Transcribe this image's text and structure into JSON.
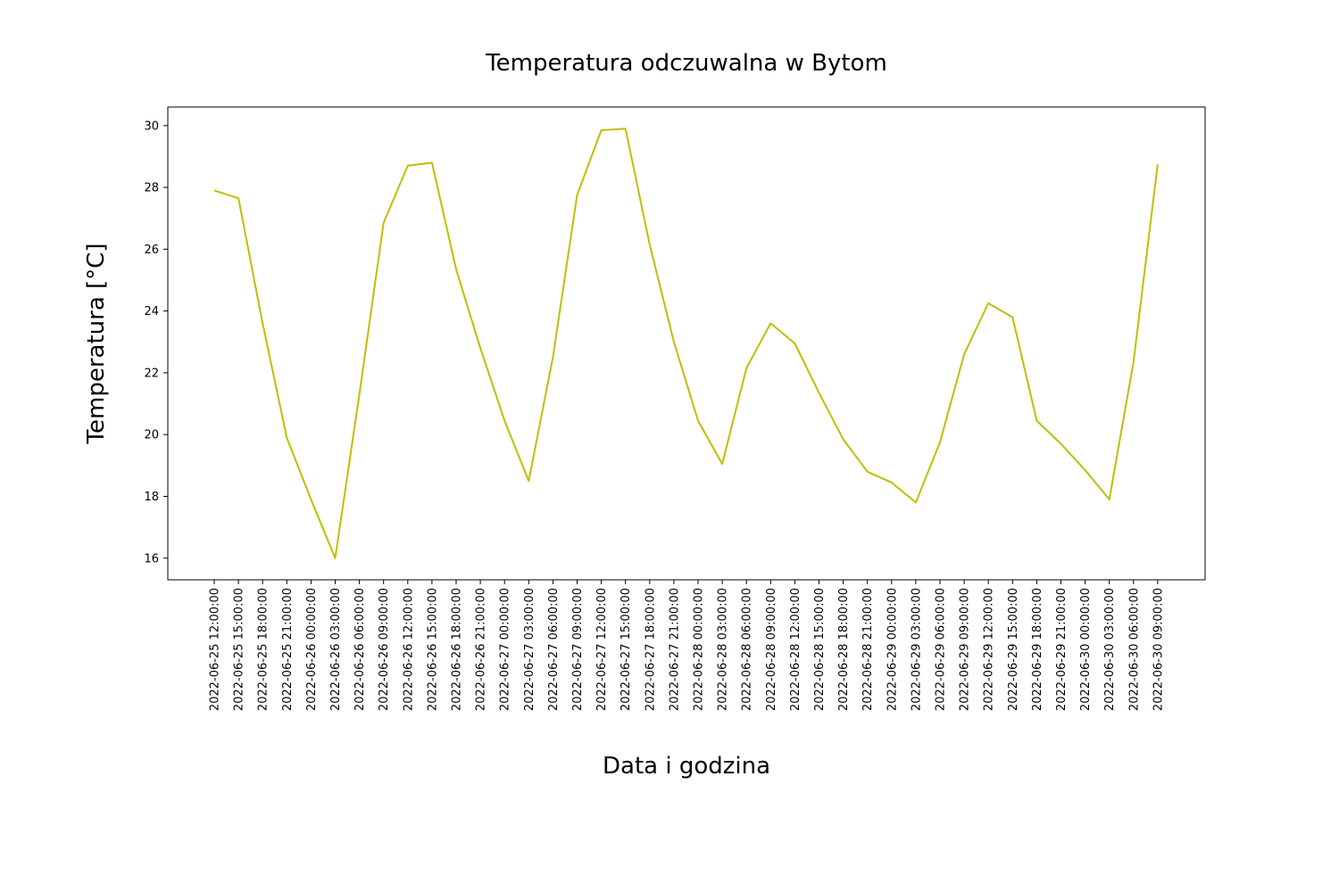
{
  "chart_data": {
    "type": "line",
    "title": "Temperatura odczuwalna w Bytom",
    "xlabel": "Data i godzina",
    "ylabel": "Temperatura [°C]",
    "ylim": [
      15.3,
      30.6
    ],
    "yticks": [
      16,
      18,
      20,
      22,
      24,
      26,
      28,
      30
    ],
    "grid": false,
    "line_color": "#bfbf00",
    "x": [
      "2022-06-25 12:00:00",
      "2022-06-25 15:00:00",
      "2022-06-25 18:00:00",
      "2022-06-25 21:00:00",
      "2022-06-26 00:00:00",
      "2022-06-26 03:00:00",
      "2022-06-26 06:00:00",
      "2022-06-26 09:00:00",
      "2022-06-26 12:00:00",
      "2022-06-26 15:00:00",
      "2022-06-26 18:00:00",
      "2022-06-26 21:00:00",
      "2022-06-27 00:00:00",
      "2022-06-27 03:00:00",
      "2022-06-27 06:00:00",
      "2022-06-27 09:00:00",
      "2022-06-27 12:00:00",
      "2022-06-27 15:00:00",
      "2022-06-27 18:00:00",
      "2022-06-27 21:00:00",
      "2022-06-28 00:00:00",
      "2022-06-28 03:00:00",
      "2022-06-28 06:00:00",
      "2022-06-28 09:00:00",
      "2022-06-28 12:00:00",
      "2022-06-28 15:00:00",
      "2022-06-28 18:00:00",
      "2022-06-28 21:00:00",
      "2022-06-29 00:00:00",
      "2022-06-29 03:00:00",
      "2022-06-29 06:00:00",
      "2022-06-29 09:00:00",
      "2022-06-29 12:00:00",
      "2022-06-29 15:00:00",
      "2022-06-29 18:00:00",
      "2022-06-29 21:00:00",
      "2022-06-30 00:00:00",
      "2022-06-30 03:00:00",
      "2022-06-30 06:00:00",
      "2022-06-30 09:00:00"
    ],
    "series": [
      {
        "values": [
          27.9,
          27.65,
          23.6,
          19.9,
          17.9,
          16.0,
          21.3,
          26.85,
          28.7,
          28.8,
          25.35,
          22.8,
          20.45,
          18.5,
          22.5,
          27.75,
          29.85,
          29.9,
          26.15,
          23.0,
          20.45,
          19.05,
          22.15,
          23.6,
          22.95,
          21.35,
          19.85,
          18.8,
          18.45,
          17.8,
          19.75,
          22.6,
          24.25,
          23.8,
          20.45,
          19.7,
          18.85,
          17.9,
          22.35,
          28.75
        ]
      }
    ]
  }
}
